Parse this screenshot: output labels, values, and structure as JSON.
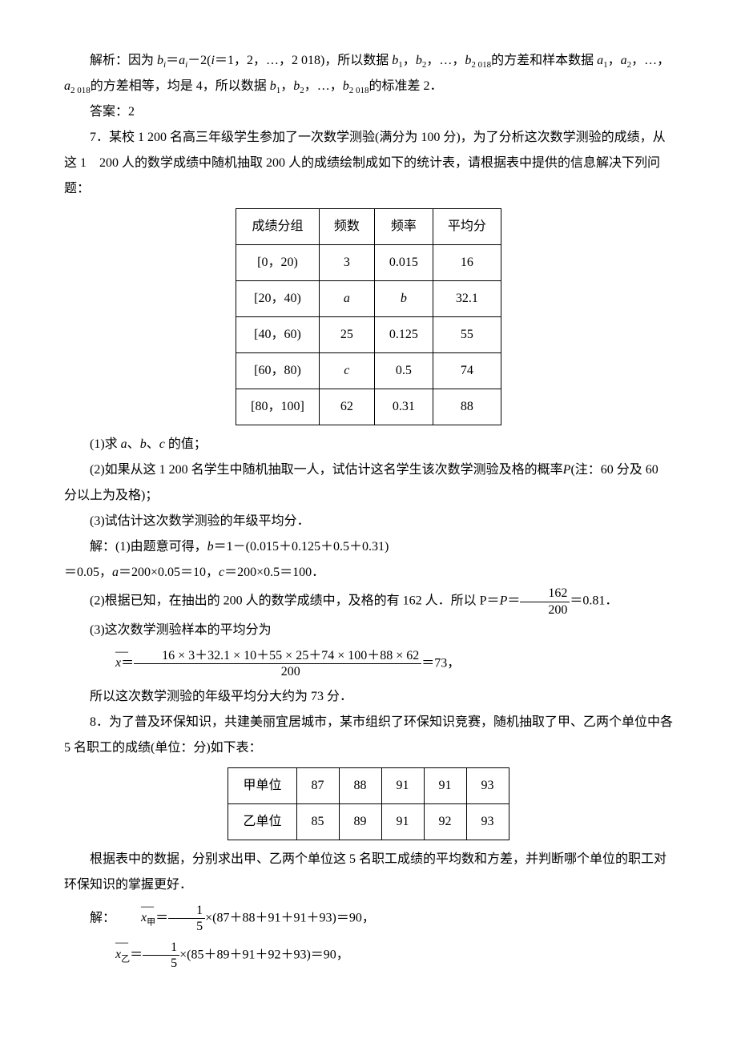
{
  "para1": "解析：因为 bᵢ＝aᵢ－2(i＝1，2，…，2 018)，所以数据 b₁，b₂，…，b₂ ₀₁₈的方差和样本数据 a₁，a₂，…，a₂ ₀₁₈的方差相等，均是 4，所以数据 b₁，b₂，…，b₂ ₀₁₈的标准差 2．",
  "ans1": "答案：2",
  "q7": "7．某校 1 200 名高三年级学生参加了一次数学测验(满分为 100 分)，为了分析这次数学测验的成绩，从这 1　200 人的数学成绩中随机抽取 200 人的成绩绘制成如下的统计表，请根据表中提供的信息解决下列问题：",
  "table1": {
    "headers": [
      "成绩分组",
      "频数",
      "频率",
      "平均分"
    ],
    "rows": [
      [
        "[0，20)",
        "3",
        "0.015",
        "16"
      ],
      [
        "[20，40)",
        "a",
        "b",
        "32.1"
      ],
      [
        "[40，60)",
        "25",
        "0.125",
        "55"
      ],
      [
        "[60，80)",
        "c",
        "0.5",
        "74"
      ],
      [
        "[80，100]",
        "62",
        "0.31",
        "88"
      ]
    ],
    "italic_cells": [
      [
        1,
        1
      ],
      [
        1,
        2
      ],
      [
        3,
        1
      ]
    ]
  },
  "q7_1": "(1)求 a、b、c 的值；",
  "q7_2": "(2)如果从这 1 200 名学生中随机抽取一人，试估计这名学生该次数学测验及格的概率P(注：60 分及 60 分以上为及格)；",
  "q7_3": "(3)试估计这次数学测验的年级平均分．",
  "sol7_1a": "解：(1)由题意可得，b＝1－(0.015＋0.125＋0.5＋0.31)",
  "sol7_1b": "＝0.05，a＝200×0.05＝10，c＝200×0.5＝100．",
  "sol7_2_prefix": "(2)根据已知，在抽出的 200 人的数学成绩中，及格的有 162 人．所以 P＝",
  "sol7_2_frac": {
    "num": "162",
    "den": "200"
  },
  "sol7_2_suffix": "＝0.81．",
  "sol7_3a": "(3)这次数学测验样本的平均分为",
  "sol7_3_frac": {
    "num": "16 × 3＋32.1 × 10＋55 × 25＋74 × 100＋88 × 62",
    "den": "200"
  },
  "sol7_3_suffix": "＝73，",
  "sol7_3c": "所以这次数学测验的年级平均分大约为 73 分．",
  "q8": "8．为了普及环保知识，共建美丽宜居城市，某市组织了环保知识竞赛，随机抽取了甲、乙两个单位中各 5 名职工的成绩(单位：分)如下表：",
  "table2": {
    "rows": [
      [
        "甲单位",
        "87",
        "88",
        "91",
        "91",
        "93"
      ],
      [
        "乙单位",
        "85",
        "89",
        "91",
        "92",
        "93"
      ]
    ]
  },
  "q8_task": "根据表中的数据，分别求出甲、乙两个单位这 5 名职工成绩的平均数和方差，并判断哪个单位的职工对环保知识的掌握更好．",
  "sol8_prefix": "解：",
  "sol8_line1_sub": "甲",
  "sol8_line1_frac": {
    "num": "1",
    "den": "5"
  },
  "sol8_line1_rest": "×(87＋88＋91＋91＋93)＝90，",
  "sol8_line2_sub": "乙",
  "sol8_line2_frac": {
    "num": "1",
    "den": "5"
  },
  "sol8_line2_rest": "×(85＋89＋91＋92＋93)＝90，"
}
